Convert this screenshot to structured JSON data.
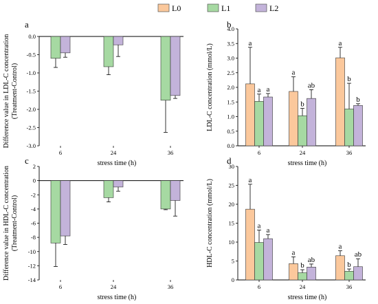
{
  "legend": [
    {
      "label": "L0",
      "color": "#FBC89C"
    },
    {
      "label": "L1",
      "color": "#A6D9A2"
    },
    {
      "label": "L2",
      "color": "#C3B3DA"
    }
  ],
  "chart_data": [
    {
      "type": "bar",
      "panel_label": "a",
      "xlabel": "stress time (h)",
      "ylabel": "Difference value in LDL-C concentration (Treatment-Control)",
      "categories": [
        "6",
        "24",
        "36"
      ],
      "ylim": [
        -3.0,
        0.0
      ],
      "ytick_labels": [
        "0.0",
        "-0.5",
        "-1.0",
        "-1.5",
        "-2.0",
        "-2.5",
        "-3.0"
      ],
      "grid": false,
      "series": [
        {
          "name": "L1",
          "values": [
            -0.6,
            -0.83,
            -1.75
          ],
          "errors": [
            0.25,
            0.22,
            0.88
          ]
        },
        {
          "name": "L2",
          "values": [
            -0.45,
            -0.23,
            -1.62
          ],
          "errors": [
            0.12,
            0.32,
            0.08
          ]
        }
      ]
    },
    {
      "type": "bar",
      "panel_label": "b",
      "xlabel": "stress time (h)",
      "ylabel": "LDL-C concentration (mmol/L)",
      "categories": [
        "6",
        "24",
        "36"
      ],
      "ylim": [
        0.0,
        4.0
      ],
      "ytick_labels": [
        "0.0",
        "0.5",
        "1.0",
        "1.5",
        "2.0",
        "2.5",
        "3.0",
        "3.5",
        "4.0"
      ],
      "grid": false,
      "series": [
        {
          "name": "L0",
          "values": [
            2.12,
            1.86,
            3.01
          ],
          "errors": [
            1.25,
            0.5,
            0.36
          ],
          "labels": [
            "a",
            "a",
            "a"
          ]
        },
        {
          "name": "L1",
          "values": [
            1.52,
            1.03,
            1.26
          ],
          "errors": [
            0.25,
            0.25,
            0.88
          ],
          "labels": [
            "a",
            "b",
            "b"
          ]
        },
        {
          "name": "L2",
          "values": [
            1.67,
            1.62,
            1.38
          ],
          "errors": [
            0.12,
            0.3,
            0.06
          ],
          "labels": [
            "a",
            "ab",
            "b"
          ]
        }
      ]
    },
    {
      "type": "bar",
      "panel_label": "c",
      "xlabel": "stress time (h)",
      "ylabel": "Difference value in HDL-C concentration (Treatment-Control)",
      "categories": [
        "6",
        "24",
        "36"
      ],
      "ylim": [
        -14,
        2
      ],
      "ytick_labels": [
        "2",
        "0",
        "-2",
        "-4",
        "-6",
        "-8",
        "-10",
        "-12",
        "-14"
      ],
      "grid": false,
      "series": [
        {
          "name": "L1",
          "values": [
            -8.8,
            -2.4,
            -4.0
          ],
          "errors": [
            3.3,
            0.6,
            0.1
          ],
          "labels": [],
          "labels_note": ""
        },
        {
          "name": "L2",
          "values": [
            -7.8,
            -0.9,
            -2.8
          ],
          "errors": [
            1.2,
            0.6,
            2.2
          ]
        }
      ]
    },
    {
      "type": "bar",
      "panel_label": "d",
      "xlabel": "stress time (h)",
      "ylabel": "HDL-C concentration (mmol/L)",
      "categories": [
        "6",
        "24",
        "36"
      ],
      "ylim": [
        0,
        30
      ],
      "ytick_labels": [
        "0",
        "5",
        "10",
        "15",
        "20",
        "25",
        "30"
      ],
      "grid": false,
      "series": [
        {
          "name": "L0",
          "values": [
            18.7,
            4.3,
            6.4
          ],
          "errors": [
            6.6,
            1.8,
            1.3
          ],
          "labels": [
            "a",
            "a",
            "a"
          ]
        },
        {
          "name": "L1",
          "values": [
            9.9,
            1.9,
            2.3
          ],
          "errors": [
            3.3,
            0.8,
            0.6
          ],
          "labels": [
            "a",
            "b",
            "b"
          ]
        },
        {
          "name": "L2",
          "values": [
            10.9,
            3.4,
            3.5
          ],
          "errors": [
            1.1,
            0.8,
            2.1
          ],
          "labels": [
            "a",
            "ab",
            "ab"
          ]
        }
      ]
    }
  ]
}
